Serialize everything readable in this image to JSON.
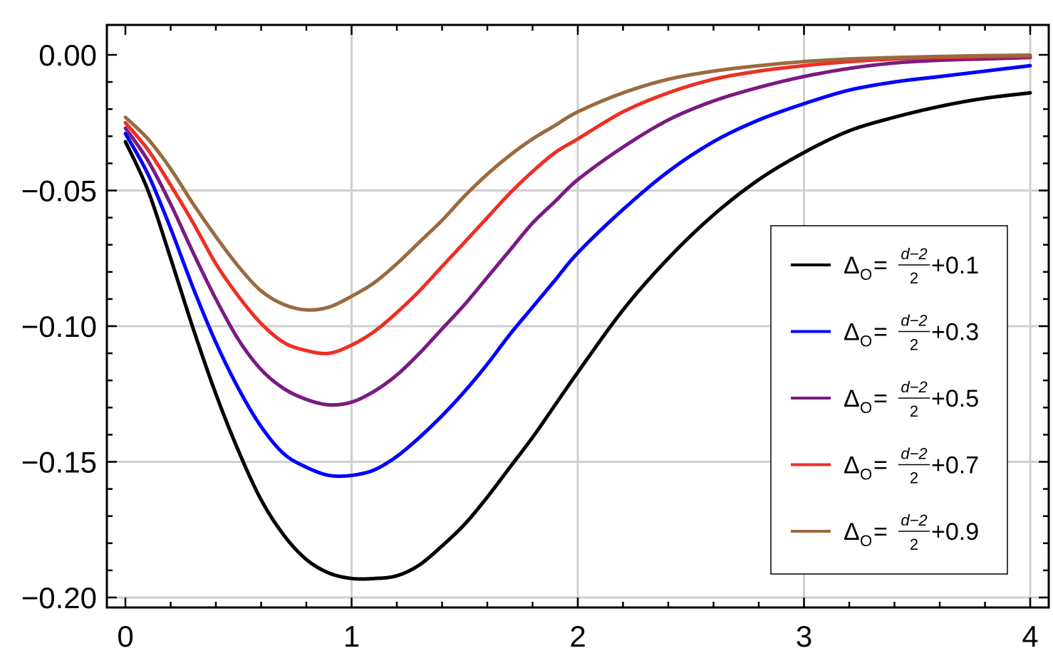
{
  "chart_data": {
    "type": "line",
    "title": "",
    "xlabel": "",
    "ylabel": "",
    "xlim": [
      0,
      4
    ],
    "ylim": [
      -0.2,
      0.0
    ],
    "grid": true,
    "legend_position": "right",
    "x_ticks": [
      0,
      1,
      2,
      3,
      4
    ],
    "x_tick_labels": [
      "0",
      "1",
      "2",
      "3",
      "4"
    ],
    "y_ticks": [
      0.0,
      -0.05,
      -0.1,
      -0.15,
      -0.2
    ],
    "y_tick_labels": [
      "0.00",
      "−0.05",
      "−0.10",
      "−0.15",
      "−0.20"
    ],
    "x": [
      0,
      0.1,
      0.2,
      0.3,
      0.4,
      0.5,
      0.6,
      0.7,
      0.8,
      0.9,
      1.0,
      1.1,
      1.2,
      1.3,
      1.4,
      1.5,
      1.6,
      1.7,
      1.8,
      1.9,
      2.0,
      2.2,
      2.4,
      2.6,
      2.8,
      3.0,
      3.2,
      3.4,
      3.6,
      3.8,
      4.0
    ],
    "series": [
      {
        "name": "ΔO=(d−2)/2+0.1",
        "legend_prefix": "Δ",
        "legend_sub": "O",
        "legend_frac_num": "d−2",
        "legend_frac_den": "2",
        "legend_suffix": "+0.1",
        "color": "#000000",
        "values": [
          -0.032,
          -0.05,
          -0.075,
          -0.101,
          -0.125,
          -0.146,
          -0.164,
          -0.177,
          -0.186,
          -0.191,
          -0.193,
          -0.193,
          -0.192,
          -0.188,
          -0.181,
          -0.173,
          -0.163,
          -0.152,
          -0.141,
          -0.129,
          -0.117,
          -0.094,
          -0.075,
          -0.059,
          -0.046,
          -0.036,
          -0.028,
          -0.023,
          -0.019,
          -0.016,
          -0.014
        ]
      },
      {
        "name": "ΔO=(d−2)/2+0.3",
        "legend_prefix": "Δ",
        "legend_sub": "O",
        "legend_frac_num": "d−2",
        "legend_frac_den": "2",
        "legend_suffix": "+0.3",
        "color": "#0000ff",
        "values": [
          -0.029,
          -0.044,
          -0.064,
          -0.086,
          -0.106,
          -0.123,
          -0.137,
          -0.147,
          -0.152,
          -0.155,
          -0.155,
          -0.153,
          -0.148,
          -0.141,
          -0.133,
          -0.124,
          -0.114,
          -0.103,
          -0.093,
          -0.083,
          -0.073,
          -0.057,
          -0.043,
          -0.032,
          -0.024,
          -0.018,
          -0.013,
          -0.01,
          -0.008,
          -0.006,
          -0.004
        ]
      },
      {
        "name": "ΔO=(d−2)/2+0.5",
        "legend_prefix": "Δ",
        "legend_sub": "O",
        "legend_frac_num": "d−2",
        "legend_frac_den": "2",
        "legend_suffix": "+0.5",
        "color": "#7a1a82",
        "values": [
          -0.027,
          -0.039,
          -0.055,
          -0.073,
          -0.09,
          -0.105,
          -0.116,
          -0.123,
          -0.127,
          -0.129,
          -0.128,
          -0.124,
          -0.118,
          -0.11,
          -0.101,
          -0.092,
          -0.082,
          -0.072,
          -0.062,
          -0.054,
          -0.046,
          -0.034,
          -0.024,
          -0.017,
          -0.012,
          -0.008,
          -0.005,
          -0.003,
          -0.002,
          -0.0015,
          -0.001
        ]
      },
      {
        "name": "ΔO=(d−2)/2+0.7",
        "legend_prefix": "Δ",
        "legend_sub": "O",
        "legend_frac_num": "d−2",
        "legend_frac_den": "2",
        "legend_suffix": "+0.7",
        "color": "#ee2f24",
        "values": [
          -0.025,
          -0.035,
          -0.048,
          -0.062,
          -0.077,
          -0.089,
          -0.099,
          -0.106,
          -0.109,
          -0.11,
          -0.107,
          -0.102,
          -0.095,
          -0.087,
          -0.078,
          -0.069,
          -0.06,
          -0.051,
          -0.043,
          -0.036,
          -0.031,
          -0.021,
          -0.014,
          -0.009,
          -0.006,
          -0.004,
          -0.0025,
          -0.0015,
          -0.001,
          -0.0007,
          -0.0005
        ]
      },
      {
        "name": "ΔO=(d−2)/2+0.9",
        "legend_prefix": "Δ",
        "legend_sub": "O",
        "legend_frac_num": "d−2",
        "legend_frac_den": "2",
        "legend_suffix": "+0.9",
        "color": "#9a6a3f",
        "values": [
          -0.023,
          -0.031,
          -0.042,
          -0.055,
          -0.067,
          -0.078,
          -0.087,
          -0.092,
          -0.094,
          -0.093,
          -0.089,
          -0.084,
          -0.077,
          -0.069,
          -0.061,
          -0.052,
          -0.044,
          -0.037,
          -0.031,
          -0.026,
          -0.021,
          -0.014,
          -0.009,
          -0.006,
          -0.004,
          -0.0025,
          -0.0015,
          -0.001,
          -0.0006,
          -0.0003,
          -0.0001
        ]
      }
    ]
  }
}
